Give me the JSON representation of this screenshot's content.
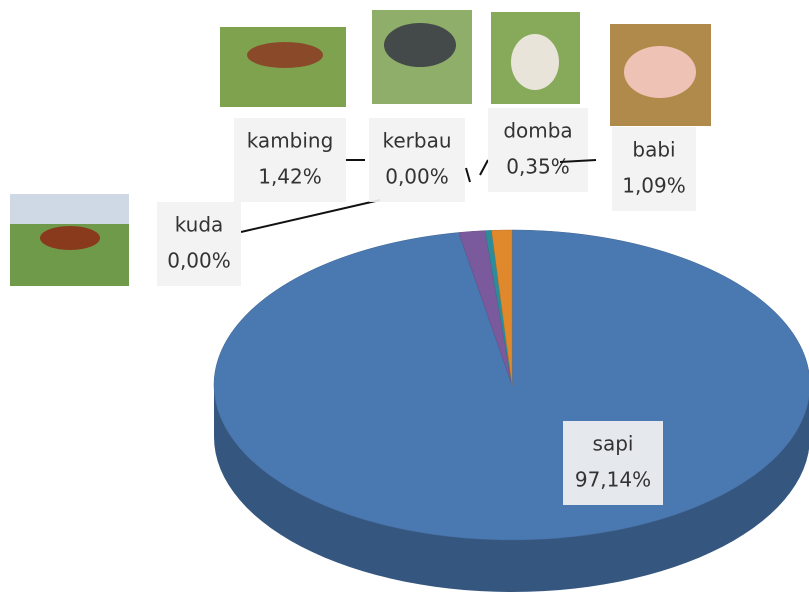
{
  "chart_data": {
    "type": "pie3d",
    "categories": [
      "sapi",
      "kuda",
      "kambing",
      "kerbau",
      "domba",
      "babi"
    ],
    "values": [
      97.14,
      0,
      1.42,
      0,
      0.35,
      1.09
    ],
    "value_labels": [
      "97,14%",
      "0,00%",
      "1,42%",
      "0,00%",
      "0,35%",
      "1,09%"
    ],
    "colors": [
      "#4a78b0",
      "#6a1c1c",
      "#7a5a9c",
      "#5a8a3a",
      "#2e8c9a",
      "#e0892c"
    ]
  }
}
